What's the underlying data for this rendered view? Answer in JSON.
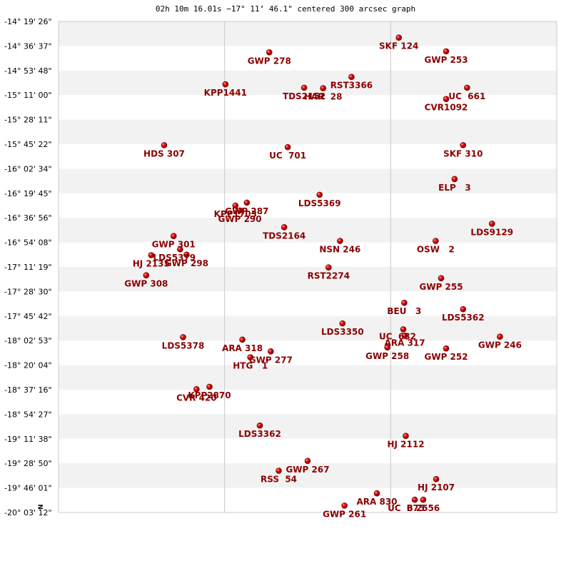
{
  "chart_data": {
    "type": "scatter",
    "title": "02h 10m 16.01s −17° 11’ 46.1\" centered 300 arcsec graph",
    "compass_label": "N",
    "y_ticks": [
      "-14° 19' 26\"",
      "-14° 36' 37\"",
      "-14° 53' 48\"",
      "-15° 11' 00\"",
      "-15° 28' 11\"",
      "-15° 45' 22\"",
      "-16° 02' 34\"",
      "-16° 19' 45\"",
      "-16° 36' 56\"",
      "-16° 54' 08\"",
      "-17° 11' 19\"",
      "-17° 28' 30\"",
      "-17° 45' 42\"",
      "-18° 02' 53\"",
      "-18° 20' 04\"",
      "-18° 37' 16\"",
      "-18° 54' 27\"",
      "-19° 11' 38\"",
      "-19° 28' 50\"",
      "-19° 46' 01\"",
      "-20° 03' 12\""
    ],
    "grid": true,
    "x_gridlines": 2,
    "point_color": "#cc0000",
    "label_color": "#8b0000",
    "band_color": "#f2f2f2",
    "points": [
      {
        "name": "SKF 124",
        "x": 0.683,
        "y": 0.033
      },
      {
        "name": "GWP 253",
        "x": 0.778,
        "y": 0.061
      },
      {
        "name": "GWP 278",
        "x": 0.423,
        "y": 0.063
      },
      {
        "name": "RST3366",
        "x": 0.588,
        "y": 0.113
      },
      {
        "name": "KPP1441",
        "x": 0.335,
        "y": 0.128
      },
      {
        "name": "TDS2152",
        "x": 0.493,
        "y": 0.135
      },
      {
        "name": "HAR  28",
        "x": 0.531,
        "y": 0.136
      },
      {
        "name": "UC  661",
        "x": 0.82,
        "y": 0.135
      },
      {
        "name": "CVR1092",
        "x": 0.778,
        "y": 0.158
      },
      {
        "name": "HDS 307",
        "x": 0.212,
        "y": 0.252
      },
      {
        "name": "UC  701",
        "x": 0.46,
        "y": 0.256
      },
      {
        "name": "SKF 310",
        "x": 0.812,
        "y": 0.252
      },
      {
        "name": "ELP   3",
        "x": 0.795,
        "y": 0.321
      },
      {
        "name": "LDS5369",
        "x": 0.524,
        "y": 0.353
      },
      {
        "name": "GWP 287",
        "x": 0.378,
        "y": 0.369
      },
      {
        "name": "KPP1703",
        "x": 0.355,
        "y": 0.375
      },
      {
        "name": "GWP 290",
        "x": 0.364,
        "y": 0.385
      },
      {
        "name": "LDS9129",
        "x": 0.87,
        "y": 0.412
      },
      {
        "name": "TDS2164",
        "x": 0.453,
        "y": 0.419
      },
      {
        "name": "GWP 301",
        "x": 0.231,
        "y": 0.437
      },
      {
        "name": "NSN 246",
        "x": 0.565,
        "y": 0.447
      },
      {
        "name": "OSW   2",
        "x": 0.757,
        "y": 0.447
      },
      {
        "name": "LDS5379",
        "x": 0.244,
        "y": 0.464
      },
      {
        "name": "GWP 298",
        "x": 0.257,
        "y": 0.475
      },
      {
        "name": "HJ 2135",
        "x": 0.186,
        "y": 0.476
      },
      {
        "name": "RST2274",
        "x": 0.542,
        "y": 0.501
      },
      {
        "name": "GWP 308",
        "x": 0.176,
        "y": 0.517
      },
      {
        "name": "GWP 255",
        "x": 0.768,
        "y": 0.523
      },
      {
        "name": "BEU   3",
        "x": 0.694,
        "y": 0.573
      },
      {
        "name": "LDS5362",
        "x": 0.812,
        "y": 0.586
      },
      {
        "name": "LDS3350",
        "x": 0.57,
        "y": 0.615
      },
      {
        "name": "UC  682",
        "x": 0.692,
        "y": 0.627
      },
      {
        "name": "ARA 317",
        "x": 0.695,
        "y": 0.64
      },
      {
        "name": "GWP 246",
        "x": 0.886,
        "y": 0.642
      },
      {
        "name": "LDS5378",
        "x": 0.25,
        "y": 0.643
      },
      {
        "name": "ARA 318",
        "x": 0.369,
        "y": 0.648
      },
      {
        "name": "GWP 258",
        "x": 0.66,
        "y": 0.664
      },
      {
        "name": "GWP 252",
        "x": 0.778,
        "y": 0.666
      },
      {
        "name": "GWP 277",
        "x": 0.426,
        "y": 0.672
      },
      {
        "name": "HTG   1",
        "x": 0.385,
        "y": 0.684
      },
      {
        "name": "KPP2870",
        "x": 0.303,
        "y": 0.744
      },
      {
        "name": "CVR 420",
        "x": 0.277,
        "y": 0.749
      },
      {
        "name": "LDS3362",
        "x": 0.404,
        "y": 0.823
      },
      {
        "name": "HJ 2112",
        "x": 0.697,
        "y": 0.844
      },
      {
        "name": "GWP 267",
        "x": 0.5,
        "y": 0.895
      },
      {
        "name": "RSS  54",
        "x": 0.442,
        "y": 0.915
      },
      {
        "name": "HJ 2107",
        "x": 0.758,
        "y": 0.932
      },
      {
        "name": "ARA 830",
        "x": 0.639,
        "y": 0.961
      },
      {
        "name": "UC  675",
        "x": 0.715,
        "y": 0.974
      },
      {
        "name": "B 2556",
        "x": 0.732,
        "y": 0.974
      },
      {
        "name": "GWP 261",
        "x": 0.574,
        "y": 0.986
      }
    ],
    "label_offsets": {
      "TDS2152": [
        0,
        16
      ],
      "HAR  28": [
        0,
        16
      ],
      "KPP1703": [
        0,
        16
      ],
      "GWP 290": [
        0,
        16
      ],
      "LDS5379": [
        -8,
        16
      ],
      "GWP 298": [
        0,
        16
      ],
      "UC  682": [
        -8,
        14
      ],
      "ARA 317": [
        0,
        14
      ],
      "KPP2870": [
        0,
        16
      ],
      "CVR 420": [
        0,
        16
      ],
      "UC  675": [
        -12,
        16
      ],
      "B 2556": [
        0,
        16
      ]
    }
  }
}
